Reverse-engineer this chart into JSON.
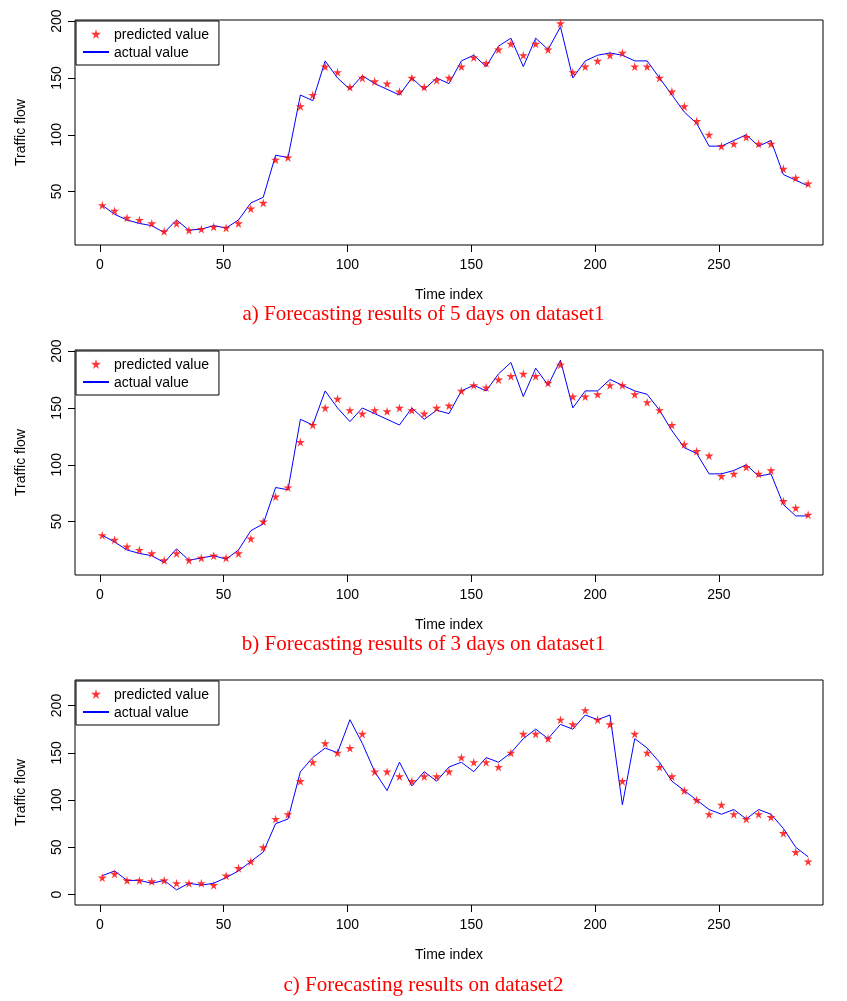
{
  "chart_data": [
    {
      "type": "line",
      "title": "a) Forecasting results of 5 days on dataset1",
      "xlabel": "Time index",
      "ylabel": "Traffic flow",
      "x": [
        1,
        6,
        11,
        16,
        21,
        26,
        31,
        36,
        41,
        46,
        51,
        56,
        61,
        66,
        71,
        76,
        81,
        86,
        91,
        96,
        101,
        106,
        111,
        116,
        121,
        126,
        131,
        136,
        141,
        146,
        151,
        156,
        161,
        166,
        171,
        176,
        181,
        186,
        191,
        196,
        201,
        206,
        211,
        216,
        221,
        226,
        231,
        236,
        241,
        246,
        251,
        256,
        261,
        266,
        271,
        276,
        281,
        286
      ],
      "series": [
        {
          "name": "predicted value",
          "type": "scatter",
          "marker": "star",
          "color": "#ff0000",
          "values": [
            38,
            33,
            27,
            25,
            22,
            15,
            22,
            16,
            17,
            19,
            18,
            22,
            35,
            40,
            78,
            80,
            125,
            135,
            160,
            155,
            142,
            150,
            147,
            145,
            138,
            150,
            142,
            148,
            150,
            160,
            168,
            163,
            175,
            180,
            170,
            180,
            175,
            198,
            155,
            160,
            165,
            170,
            172,
            160,
            160,
            150,
            138,
            125,
            112,
            100,
            90,
            92,
            98,
            92,
            92,
            70,
            62,
            57
          ]
        },
        {
          "name": "actual value",
          "marker": "none",
          "color": "#0000ff",
          "values": [
            38,
            30,
            25,
            22,
            20,
            14,
            25,
            16,
            17,
            20,
            18,
            25,
            40,
            45,
            82,
            80,
            135,
            130,
            165,
            150,
            140,
            152,
            145,
            140,
            135,
            150,
            140,
            150,
            145,
            165,
            170,
            160,
            178,
            185,
            160,
            185,
            175,
            195,
            150,
            165,
            170,
            172,
            170,
            165,
            165,
            150,
            135,
            120,
            110,
            90,
            90,
            95,
            100,
            90,
            95,
            65,
            60,
            55
          ]
        }
      ],
      "xlim": [
        -10,
        292
      ],
      "ylim": [
        3,
        201
      ],
      "xticks": [
        0,
        50,
        100,
        150,
        200,
        250
      ],
      "yticks": [
        50,
        100,
        150,
        200
      ],
      "legend": "top left"
    },
    {
      "type": "line",
      "title": "b) Forecasting results of 3 days on dataset1",
      "xlabel": "Time index",
      "ylabel": "Traffic flow",
      "x": [
        1,
        6,
        11,
        16,
        21,
        26,
        31,
        36,
        41,
        46,
        51,
        56,
        61,
        66,
        71,
        76,
        81,
        86,
        91,
        96,
        101,
        106,
        111,
        116,
        121,
        126,
        131,
        136,
        141,
        146,
        151,
        156,
        161,
        166,
        171,
        176,
        181,
        186,
        191,
        196,
        201,
        206,
        211,
        216,
        221,
        226,
        231,
        236,
        241,
        246,
        251,
        256,
        261,
        266,
        271,
        276,
        281,
        286
      ],
      "series": [
        {
          "name": "predicted value",
          "type": "scatter",
          "marker": "star",
          "color": "#ff0000",
          "values": [
            38,
            34,
            28,
            25,
            22,
            16,
            22,
            16,
            18,
            20,
            18,
            22,
            35,
            50,
            72,
            80,
            120,
            135,
            150,
            158,
            148,
            145,
            148,
            147,
            150,
            148,
            145,
            150,
            152,
            165,
            170,
            168,
            175,
            178,
            180,
            178,
            172,
            188,
            160,
            160,
            162,
            170,
            170,
            162,
            155,
            148,
            135,
            118,
            112,
            108,
            90,
            92,
            98,
            92,
            95,
            68,
            62,
            56
          ]
        },
        {
          "name": "actual value",
          "marker": "none",
          "color": "#0000ff",
          "values": [
            38,
            32,
            25,
            22,
            20,
            14,
            26,
            16,
            18,
            20,
            17,
            25,
            42,
            48,
            80,
            78,
            140,
            135,
            165,
            150,
            138,
            150,
            145,
            140,
            135,
            150,
            140,
            148,
            145,
            165,
            170,
            165,
            180,
            190,
            160,
            185,
            170,
            192,
            150,
            165,
            165,
            175,
            170,
            165,
            162,
            148,
            130,
            115,
            110,
            92,
            92,
            95,
            100,
            90,
            92,
            65,
            55,
            55
          ]
        }
      ],
      "xlim": [
        -10,
        292
      ],
      "ylim": [
        3,
        201
      ],
      "xticks": [
        0,
        50,
        100,
        150,
        200,
        250
      ],
      "yticks": [
        50,
        100,
        150,
        200
      ],
      "legend": "top left"
    },
    {
      "type": "line",
      "title": "c) Forecasting results on dataset2",
      "xlabel": "Time index",
      "ylabel": "Traffic flow",
      "x": [
        1,
        6,
        11,
        16,
        21,
        26,
        31,
        36,
        41,
        46,
        51,
        56,
        61,
        66,
        71,
        76,
        81,
        86,
        91,
        96,
        101,
        106,
        111,
        116,
        121,
        126,
        131,
        136,
        141,
        146,
        151,
        156,
        161,
        166,
        171,
        176,
        181,
        186,
        191,
        196,
        201,
        206,
        211,
        216,
        221,
        226,
        231,
        236,
        241,
        246,
        251,
        256,
        261,
        266,
        271,
        276,
        281,
        286
      ],
      "series": [
        {
          "name": "predicted value",
          "type": "scatter",
          "marker": "star",
          "color": "#ff0000",
          "values": [
            18,
            22,
            15,
            15,
            14,
            15,
            12,
            12,
            12,
            10,
            20,
            28,
            35,
            50,
            80,
            85,
            120,
            140,
            160,
            150,
            155,
            170,
            130,
            130,
            125,
            120,
            125,
            125,
            130,
            145,
            140,
            140,
            135,
            150,
            170,
            170,
            165,
            185,
            180,
            195,
            185,
            180,
            120,
            170,
            150,
            135,
            125,
            110,
            100,
            85,
            95,
            85,
            80,
            85,
            82,
            65,
            45,
            35
          ]
        },
        {
          "name": "actual value",
          "marker": "none",
          "color": "#0000ff",
          "values": [
            20,
            25,
            15,
            15,
            12,
            15,
            5,
            12,
            10,
            12,
            18,
            25,
            35,
            45,
            75,
            80,
            130,
            145,
            155,
            150,
            185,
            160,
            130,
            110,
            140,
            115,
            130,
            120,
            135,
            140,
            130,
            145,
            140,
            150,
            165,
            175,
            165,
            180,
            175,
            190,
            185,
            190,
            95,
            165,
            155,
            140,
            120,
            110,
            100,
            90,
            85,
            90,
            80,
            90,
            85,
            70,
            50,
            40
          ]
        }
      ],
      "xlim": [
        -10,
        292
      ],
      "ylim": [
        -11,
        227
      ],
      "xticks": [
        0,
        50,
        100,
        150,
        200,
        250
      ],
      "yticks": [
        0,
        50,
        100,
        150,
        200
      ],
      "legend": "top left"
    }
  ]
}
